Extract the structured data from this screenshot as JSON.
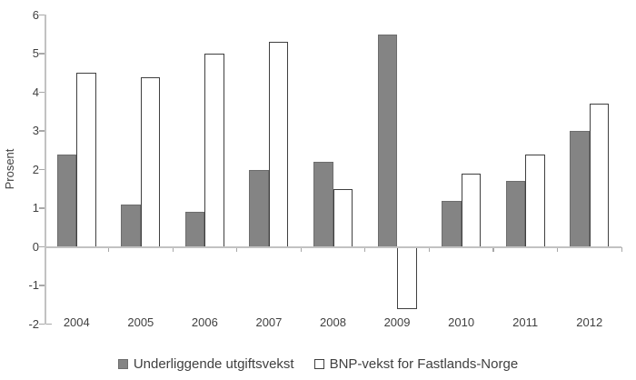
{
  "chart_data": {
    "type": "bar",
    "categories": [
      "2004",
      "2005",
      "2006",
      "2007",
      "2008",
      "2009",
      "2010",
      "2011",
      "2012"
    ],
    "series": [
      {
        "name": "Underliggende utgiftsvekst",
        "values": [
          2.4,
          1.1,
          0.9,
          2.0,
          2.2,
          5.5,
          1.2,
          1.7,
          3.0
        ]
      },
      {
        "name": "BNP-vekst for Fastlands-Norge",
        "values": [
          4.5,
          4.4,
          5.0,
          5.3,
          1.5,
          -1.6,
          1.9,
          2.4,
          3.7
        ]
      }
    ],
    "title": "",
    "xlabel": "",
    "ylabel": "Prosent",
    "ylim": [
      -2,
      6
    ],
    "ytick_step": 1,
    "ytick_labels": [
      "6",
      "5",
      "4",
      "3",
      "2",
      "1",
      "0",
      "-1",
      "-2"
    ],
    "grid": false,
    "legend_position": "bottom"
  },
  "colors": {
    "bar_gray_fill": "#848484",
    "bar_gray_border": "#6d6d6d",
    "bar_white_fill": "#ffffff",
    "bar_white_border": "#404040",
    "axis_line": "#c2c2c2",
    "tick_mark": "#a8a8a8",
    "text": "#404040"
  }
}
